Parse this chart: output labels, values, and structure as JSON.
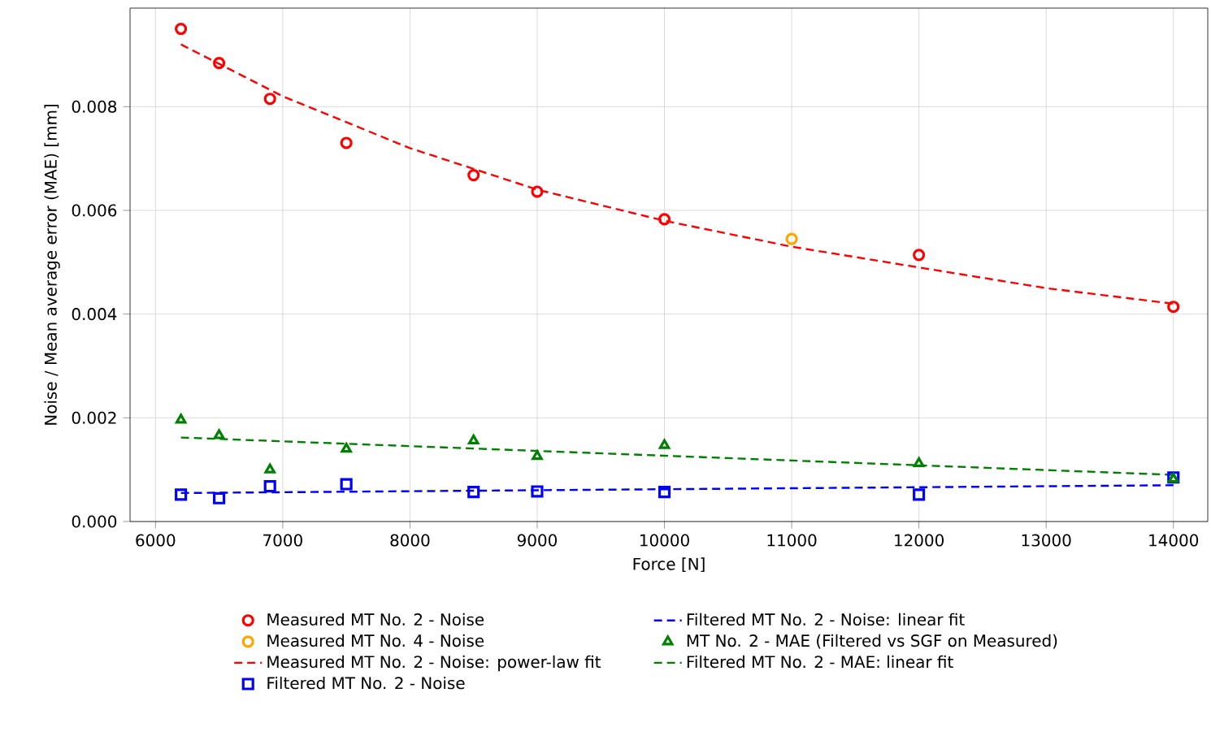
{
  "chart_data": {
    "type": "scatter",
    "xlabel": "Force [N]",
    "ylabel": "Noise / Mean average error (MAE) [mm]",
    "xlim": [
      5800,
      14270
    ],
    "ylim": [
      0,
      0.0099
    ],
    "xticks": [
      6000,
      7000,
      8000,
      9000,
      10000,
      11000,
      12000,
      13000,
      14000
    ],
    "yticks": [
      {
        "value": 0,
        "label": "0.000"
      },
      {
        "value": 0.002,
        "label": "0.002"
      },
      {
        "value": 0.004,
        "label": "0.004"
      },
      {
        "value": 0.006,
        "label": "0.006"
      },
      {
        "value": 0.008,
        "label": "0.008"
      }
    ],
    "grid": true,
    "legend": "bottom",
    "series": [
      {
        "name": "Measured MT No. 2 - Noise",
        "marker": "circle",
        "color": "#ff0000",
        "x": [
          6200,
          6500,
          6900,
          7500,
          8500,
          9000,
          10000,
          12000,
          14000
        ],
        "values": [
          0.0095,
          0.00884,
          0.00815,
          0.0073,
          0.00668,
          0.00636,
          0.00583,
          0.00514,
          0.00414
        ]
      },
      {
        "name": "Measured MT No. 4 - Noise",
        "marker": "circle",
        "color": "#ffa500",
        "x": [
          11000
        ],
        "values": [
          0.00545
        ]
      },
      {
        "name": "Measured MT No. 2 - Noise: power-law fit",
        "type": "line",
        "line_style": "dashed",
        "color": "#ff0000",
        "x": [
          6200,
          7000,
          8000,
          9000,
          10000,
          11000,
          12000,
          13000,
          14000
        ],
        "values": [
          0.0092,
          0.0082,
          0.0072,
          0.0064,
          0.0058,
          0.0053,
          0.0049,
          0.0045,
          0.0042
        ]
      },
      {
        "name": "Filtered MT No. 2 - Noise",
        "marker": "square",
        "color": "#0000ff",
        "x": [
          6200,
          6500,
          6900,
          7500,
          8500,
          9000,
          10000,
          12000,
          14000
        ],
        "values": [
          0.00052,
          0.00045,
          0.00068,
          0.00072,
          0.00057,
          0.00058,
          0.00057,
          0.00052,
          0.00085
        ]
      },
      {
        "name": "Filtered MT No. 2 - Noise: linear fit",
        "type": "line",
        "line_style": "dashed",
        "color": "#0000ff",
        "x": [
          6200,
          14000
        ],
        "values": [
          0.00055,
          0.0007
        ]
      },
      {
        "name": "MT No. 2 - MAE (Filtered vs SGF on Measured)",
        "marker": "triangle",
        "color": "#008000",
        "x": [
          6200,
          6500,
          6900,
          7500,
          8500,
          9000,
          10000,
          12000,
          14000
        ],
        "values": [
          0.00196,
          0.00166,
          0.001,
          0.0014,
          0.00156,
          0.00126,
          0.00147,
          0.00112,
          0.00082
        ]
      },
      {
        "name": "Filtered MT No. 2 - MAE: linear fit",
        "type": "line",
        "line_style": "dashed",
        "color": "#008000",
        "x": [
          6200,
          14000
        ],
        "values": [
          0.00162,
          0.0009
        ]
      }
    ]
  }
}
